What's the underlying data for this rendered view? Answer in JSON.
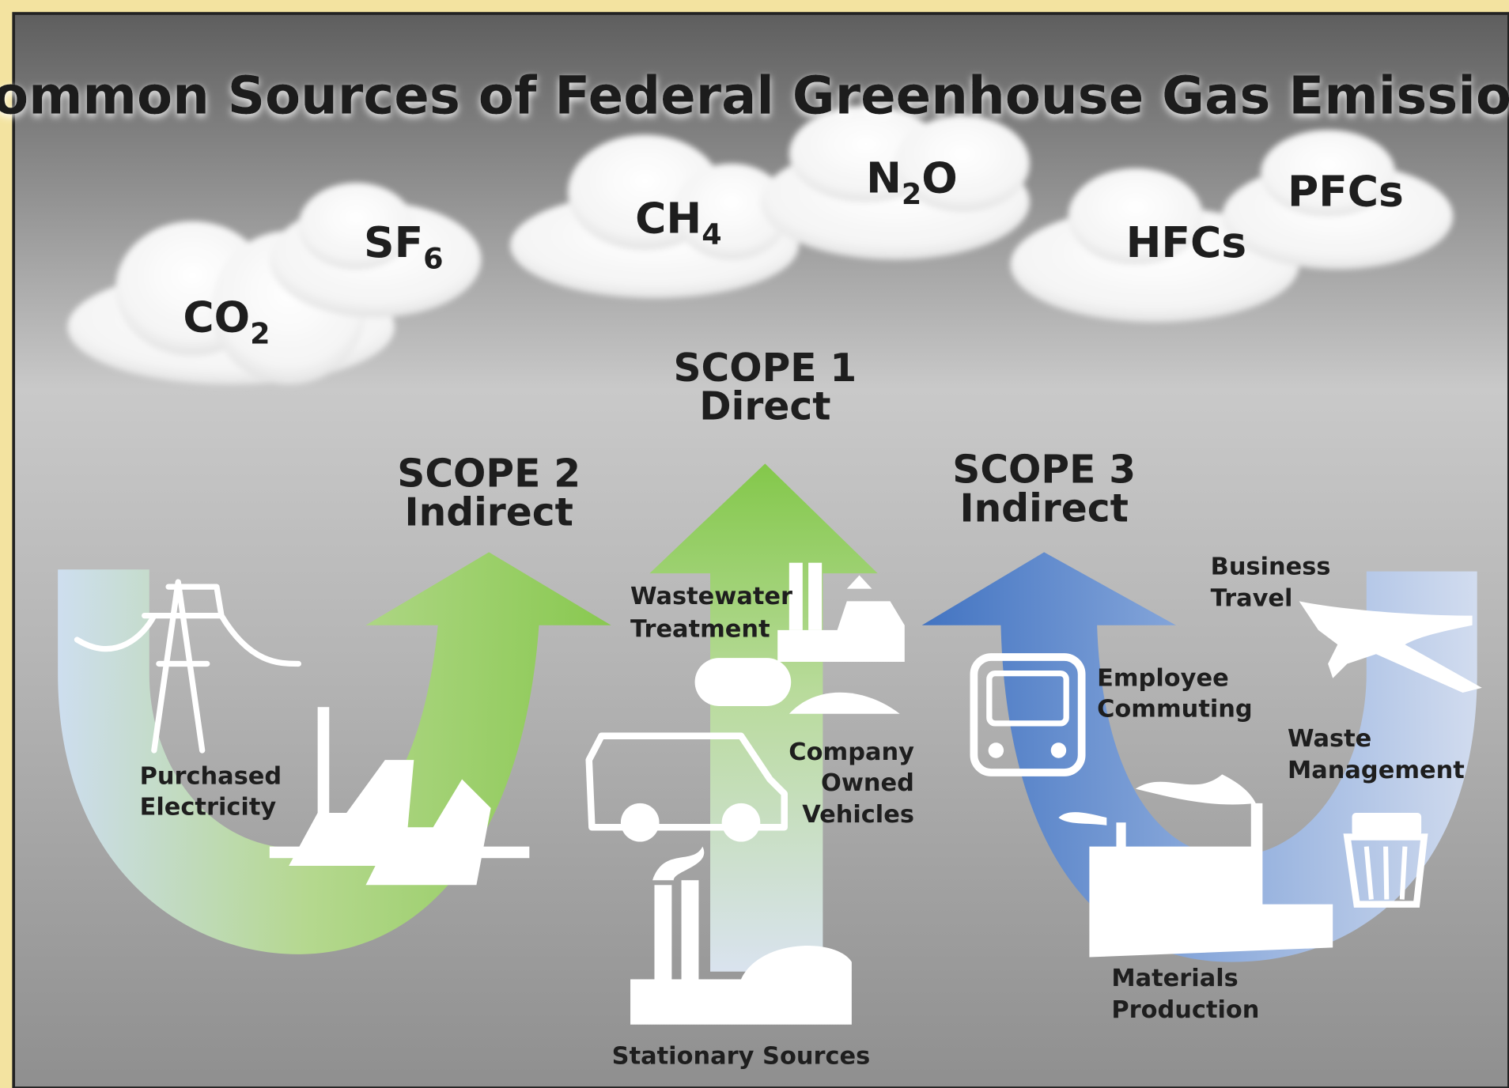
{
  "title": "Common Sources of Federal Greenhouse Gas Emissions",
  "gases": [
    {
      "base": "CO",
      "sub": "2"
    },
    {
      "base": "SF",
      "sub": "6"
    },
    {
      "base": "CH",
      "sub": "4"
    },
    {
      "base": "N",
      "sub": "2",
      "after": "O"
    },
    {
      "base": "HFCs"
    },
    {
      "base": "PFCs"
    }
  ],
  "scopes": [
    {
      "name": "SCOPE 1",
      "kind": "Direct"
    },
    {
      "name": "SCOPE 2",
      "kind": "Indirect"
    },
    {
      "name": "SCOPE 3",
      "kind": "Indirect"
    }
  ],
  "sources": [
    {
      "lines": [
        "Purchased",
        "Electricity"
      ]
    },
    {
      "lines": [
        "Wastewater",
        "Treatment"
      ]
    },
    {
      "lines": [
        "Company",
        "Owned",
        "Vehicles"
      ]
    },
    {
      "lines": [
        "Stationary Sources"
      ]
    },
    {
      "lines": [
        "Employee",
        "Commuting"
      ]
    },
    {
      "lines": [
        "Business",
        "Travel"
      ]
    },
    {
      "lines": [
        "Waste",
        "Management"
      ]
    },
    {
      "lines": [
        "Materials",
        "Production"
      ]
    }
  ]
}
